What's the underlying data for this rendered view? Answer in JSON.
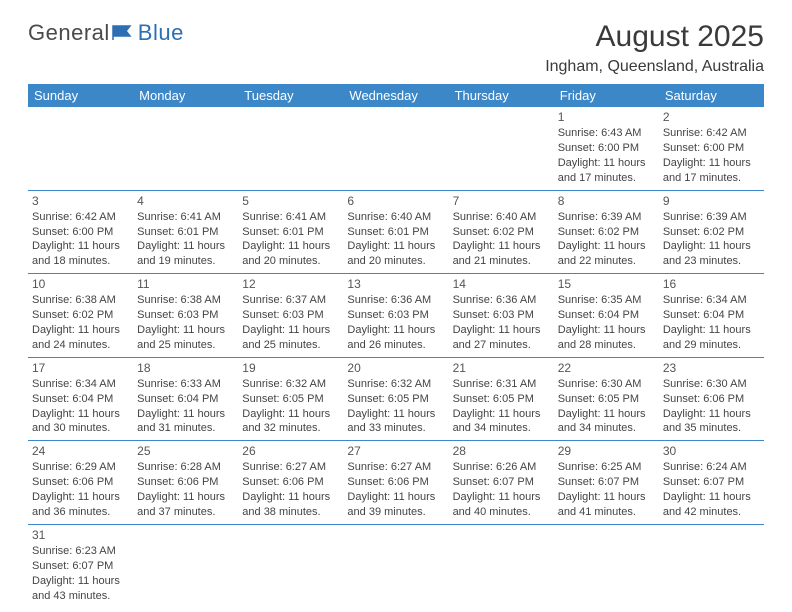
{
  "logo": {
    "text1": "General",
    "text2": "Blue"
  },
  "title": "August 2025",
  "location": "Ingham, Queensland, Australia",
  "colors": {
    "header_bg": "#3b87c8",
    "header_text": "#ffffff",
    "row_border": "#3b87c8",
    "body_text": "#444444",
    "title_text": "#3a3a3a"
  },
  "weekdays": [
    "Sunday",
    "Monday",
    "Tuesday",
    "Wednesday",
    "Thursday",
    "Friday",
    "Saturday"
  ],
  "weeks": [
    [
      null,
      null,
      null,
      null,
      null,
      {
        "n": "1",
        "sunrise": "Sunrise: 6:43 AM",
        "sunset": "Sunset: 6:00 PM",
        "day1": "Daylight: 11 hours",
        "day2": "and 17 minutes."
      },
      {
        "n": "2",
        "sunrise": "Sunrise: 6:42 AM",
        "sunset": "Sunset: 6:00 PM",
        "day1": "Daylight: 11 hours",
        "day2": "and 17 minutes."
      }
    ],
    [
      {
        "n": "3",
        "sunrise": "Sunrise: 6:42 AM",
        "sunset": "Sunset: 6:00 PM",
        "day1": "Daylight: 11 hours",
        "day2": "and 18 minutes."
      },
      {
        "n": "4",
        "sunrise": "Sunrise: 6:41 AM",
        "sunset": "Sunset: 6:01 PM",
        "day1": "Daylight: 11 hours",
        "day2": "and 19 minutes."
      },
      {
        "n": "5",
        "sunrise": "Sunrise: 6:41 AM",
        "sunset": "Sunset: 6:01 PM",
        "day1": "Daylight: 11 hours",
        "day2": "and 20 minutes."
      },
      {
        "n": "6",
        "sunrise": "Sunrise: 6:40 AM",
        "sunset": "Sunset: 6:01 PM",
        "day1": "Daylight: 11 hours",
        "day2": "and 20 minutes."
      },
      {
        "n": "7",
        "sunrise": "Sunrise: 6:40 AM",
        "sunset": "Sunset: 6:02 PM",
        "day1": "Daylight: 11 hours",
        "day2": "and 21 minutes."
      },
      {
        "n": "8",
        "sunrise": "Sunrise: 6:39 AM",
        "sunset": "Sunset: 6:02 PM",
        "day1": "Daylight: 11 hours",
        "day2": "and 22 minutes."
      },
      {
        "n": "9",
        "sunrise": "Sunrise: 6:39 AM",
        "sunset": "Sunset: 6:02 PM",
        "day1": "Daylight: 11 hours",
        "day2": "and 23 minutes."
      }
    ],
    [
      {
        "n": "10",
        "sunrise": "Sunrise: 6:38 AM",
        "sunset": "Sunset: 6:02 PM",
        "day1": "Daylight: 11 hours",
        "day2": "and 24 minutes."
      },
      {
        "n": "11",
        "sunrise": "Sunrise: 6:38 AM",
        "sunset": "Sunset: 6:03 PM",
        "day1": "Daylight: 11 hours",
        "day2": "and 25 minutes."
      },
      {
        "n": "12",
        "sunrise": "Sunrise: 6:37 AM",
        "sunset": "Sunset: 6:03 PM",
        "day1": "Daylight: 11 hours",
        "day2": "and 25 minutes."
      },
      {
        "n": "13",
        "sunrise": "Sunrise: 6:36 AM",
        "sunset": "Sunset: 6:03 PM",
        "day1": "Daylight: 11 hours",
        "day2": "and 26 minutes."
      },
      {
        "n": "14",
        "sunrise": "Sunrise: 6:36 AM",
        "sunset": "Sunset: 6:03 PM",
        "day1": "Daylight: 11 hours",
        "day2": "and 27 minutes."
      },
      {
        "n": "15",
        "sunrise": "Sunrise: 6:35 AM",
        "sunset": "Sunset: 6:04 PM",
        "day1": "Daylight: 11 hours",
        "day2": "and 28 minutes."
      },
      {
        "n": "16",
        "sunrise": "Sunrise: 6:34 AM",
        "sunset": "Sunset: 6:04 PM",
        "day1": "Daylight: 11 hours",
        "day2": "and 29 minutes."
      }
    ],
    [
      {
        "n": "17",
        "sunrise": "Sunrise: 6:34 AM",
        "sunset": "Sunset: 6:04 PM",
        "day1": "Daylight: 11 hours",
        "day2": "and 30 minutes."
      },
      {
        "n": "18",
        "sunrise": "Sunrise: 6:33 AM",
        "sunset": "Sunset: 6:04 PM",
        "day1": "Daylight: 11 hours",
        "day2": "and 31 minutes."
      },
      {
        "n": "19",
        "sunrise": "Sunrise: 6:32 AM",
        "sunset": "Sunset: 6:05 PM",
        "day1": "Daylight: 11 hours",
        "day2": "and 32 minutes."
      },
      {
        "n": "20",
        "sunrise": "Sunrise: 6:32 AM",
        "sunset": "Sunset: 6:05 PM",
        "day1": "Daylight: 11 hours",
        "day2": "and 33 minutes."
      },
      {
        "n": "21",
        "sunrise": "Sunrise: 6:31 AM",
        "sunset": "Sunset: 6:05 PM",
        "day1": "Daylight: 11 hours",
        "day2": "and 34 minutes."
      },
      {
        "n": "22",
        "sunrise": "Sunrise: 6:30 AM",
        "sunset": "Sunset: 6:05 PM",
        "day1": "Daylight: 11 hours",
        "day2": "and 34 minutes."
      },
      {
        "n": "23",
        "sunrise": "Sunrise: 6:30 AM",
        "sunset": "Sunset: 6:06 PM",
        "day1": "Daylight: 11 hours",
        "day2": "and 35 minutes."
      }
    ],
    [
      {
        "n": "24",
        "sunrise": "Sunrise: 6:29 AM",
        "sunset": "Sunset: 6:06 PM",
        "day1": "Daylight: 11 hours",
        "day2": "and 36 minutes."
      },
      {
        "n": "25",
        "sunrise": "Sunrise: 6:28 AM",
        "sunset": "Sunset: 6:06 PM",
        "day1": "Daylight: 11 hours",
        "day2": "and 37 minutes."
      },
      {
        "n": "26",
        "sunrise": "Sunrise: 6:27 AM",
        "sunset": "Sunset: 6:06 PM",
        "day1": "Daylight: 11 hours",
        "day2": "and 38 minutes."
      },
      {
        "n": "27",
        "sunrise": "Sunrise: 6:27 AM",
        "sunset": "Sunset: 6:06 PM",
        "day1": "Daylight: 11 hours",
        "day2": "and 39 minutes."
      },
      {
        "n": "28",
        "sunrise": "Sunrise: 6:26 AM",
        "sunset": "Sunset: 6:07 PM",
        "day1": "Daylight: 11 hours",
        "day2": "and 40 minutes."
      },
      {
        "n": "29",
        "sunrise": "Sunrise: 6:25 AM",
        "sunset": "Sunset: 6:07 PM",
        "day1": "Daylight: 11 hours",
        "day2": "and 41 minutes."
      },
      {
        "n": "30",
        "sunrise": "Sunrise: 6:24 AM",
        "sunset": "Sunset: 6:07 PM",
        "day1": "Daylight: 11 hours",
        "day2": "and 42 minutes."
      }
    ],
    [
      {
        "n": "31",
        "sunrise": "Sunrise: 6:23 AM",
        "sunset": "Sunset: 6:07 PM",
        "day1": "Daylight: 11 hours",
        "day2": "and 43 minutes."
      },
      null,
      null,
      null,
      null,
      null,
      null
    ]
  ]
}
